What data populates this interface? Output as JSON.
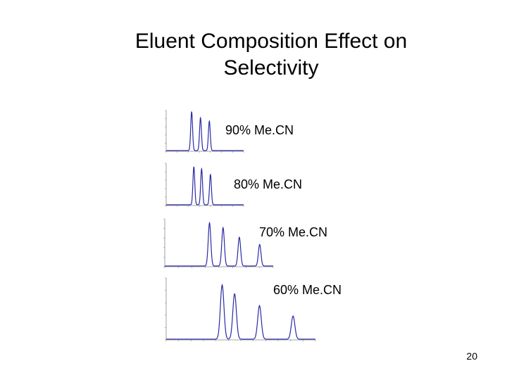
{
  "slide": {
    "title_line1": "Eluent Composition Effect on",
    "title_line2": "Selectivity",
    "page_number": "20"
  },
  "chromatograms": [
    {
      "label": "90% Me.CN",
      "x_max": 7,
      "y_max": 1,
      "line_color": "#2a2aa6",
      "peaks": [
        {
          "x": 2.3,
          "h": 0.95
        },
        {
          "x": 3.1,
          "h": 0.8
        },
        {
          "x": 3.9,
          "h": 0.72
        }
      ]
    },
    {
      "label": "80% Me.CN",
      "x_max": 7,
      "y_max": 1,
      "line_color": "#2a2aa6",
      "peaks": [
        {
          "x": 2.5,
          "h": 0.9
        },
        {
          "x": 3.2,
          "h": 0.85
        },
        {
          "x": 4.0,
          "h": 0.72
        }
      ]
    },
    {
      "label": "70% Me.CN",
      "x_max": 8,
      "y_max": 1,
      "line_color": "#2a2aa6",
      "peaks": [
        {
          "x": 3.3,
          "h": 0.9
        },
        {
          "x": 4.3,
          "h": 0.8
        },
        {
          "x": 5.5,
          "h": 0.6
        },
        {
          "x": 7.0,
          "h": 0.45
        }
      ]
    },
    {
      "label": "60% Me.CN",
      "x_max": 12,
      "y_max": 12,
      "line_color": "#2a2aa6",
      "peaks": [
        {
          "x": 4.5,
          "h": 10.5
        },
        {
          "x": 5.5,
          "h": 8.8
        },
        {
          "x": 7.5,
          "h": 6.5
        },
        {
          "x": 10.2,
          "h": 4.5
        }
      ]
    }
  ]
}
